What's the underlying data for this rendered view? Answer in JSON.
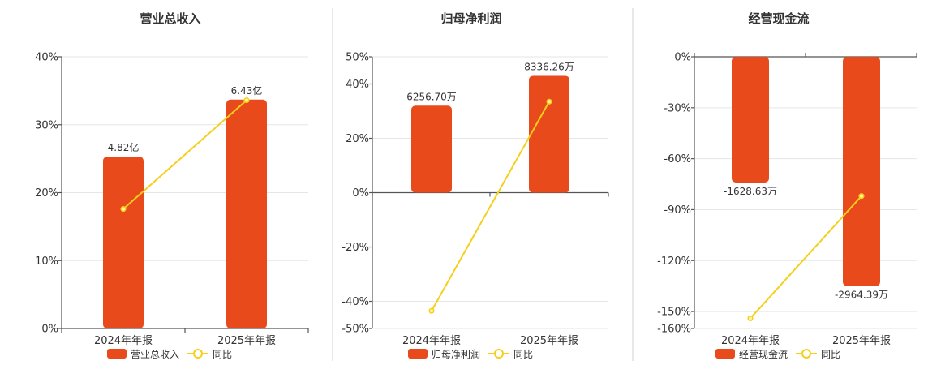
{
  "colors": {
    "bar": "#E84A1C",
    "line": "#F5CF1B",
    "marker_fill": "#FFF3A0"
  },
  "legend": {
    "line_label": "同比"
  },
  "chart_data": [
    {
      "type": "bar",
      "title": "营业总收入",
      "categories": [
        "2024年年报",
        "2025年年报"
      ],
      "series": [
        {
          "name": "营业总收入",
          "type": "bar",
          "values": [
            25.3,
            33.7
          ],
          "labels": [
            "4.82亿",
            "6.43亿"
          ]
        },
        {
          "name": "同比",
          "type": "line",
          "values": [
            17.6,
            33.6
          ]
        }
      ],
      "yticks": [
        "0%",
        "10%",
        "20%",
        "30%",
        "40%"
      ],
      "ytick_values": [
        0,
        10,
        20,
        30,
        40
      ],
      "ylim": [
        0,
        40
      ],
      "grid": true,
      "legend_position": "bottom"
    },
    {
      "type": "bar",
      "title": "归母净利润",
      "categories": [
        "2024年年报",
        "2025年年报"
      ],
      "series": [
        {
          "name": "归母净利润",
          "type": "bar",
          "values": [
            32,
            43
          ],
          "labels": [
            "6256.70万",
            "8336.26万"
          ]
        },
        {
          "name": "同比",
          "type": "line",
          "values": [
            -43.5,
            33.5
          ]
        }
      ],
      "yticks": [
        "50%",
        "40%",
        "20%",
        "0%",
        "-20%",
        "-40%",
        "-50%"
      ],
      "ytick_values": [
        50,
        40,
        20,
        0,
        -20,
        -40,
        -50
      ],
      "ylim": [
        -50,
        50
      ],
      "grid": true,
      "legend_position": "bottom"
    },
    {
      "type": "bar",
      "title": "经营现金流",
      "categories": [
        "2024年年报",
        "2025年年报"
      ],
      "series": [
        {
          "name": "经营现金流",
          "type": "bar",
          "values": [
            -74,
            -135
          ],
          "labels": [
            "-1628.63万",
            "-2964.39万"
          ]
        },
        {
          "name": "同比",
          "type": "line",
          "values": [
            -154,
            -82
          ]
        }
      ],
      "yticks": [
        "0%",
        "-30%",
        "-60%",
        "-90%",
        "-120%",
        "-150%",
        "-160%"
      ],
      "ytick_values": [
        0,
        -30,
        -60,
        -90,
        -120,
        -150,
        -160
      ],
      "ylim": [
        -160,
        0
      ],
      "grid": true,
      "legend_position": "bottom"
    }
  ]
}
